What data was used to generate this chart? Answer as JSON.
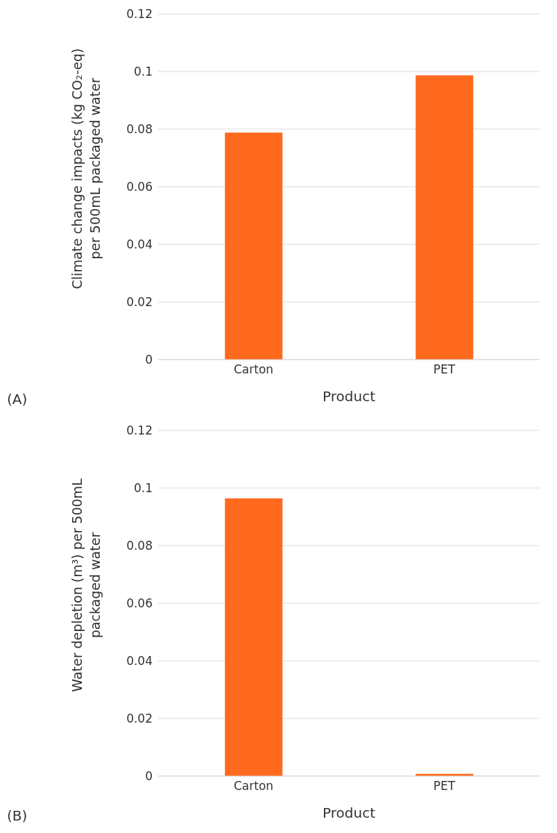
{
  "chart_data": [
    {
      "type": "bar",
      "categories": [
        "Carton",
        "PET"
      ],
      "values": [
        0.0788,
        0.0987
      ],
      "color": "#ff6a1f",
      "ylim": [
        0,
        0.12
      ],
      "yticks": [
        0,
        0.02,
        0.04,
        0.06,
        0.08,
        0.1,
        0.12
      ],
      "grid": "y",
      "xlabel": "Product",
      "ylabel": "Climate change impacts (kg CO₂-eq) per 500mL packaged water",
      "annotations": [
        "(A)"
      ]
    },
    {
      "type": "bar",
      "categories": [
        "Carton",
        "PET"
      ],
      "values": [
        0.0964,
        0.0008
      ],
      "color": "#ff6a1f",
      "ylim": [
        0,
        0.12
      ],
      "yticks": [
        0,
        0.02,
        0.04,
        0.06,
        0.08,
        0.1,
        0.12
      ],
      "grid": "y",
      "xlabel": "Product",
      "ylabel": "Water depletion (m³) per 500mL packaged water",
      "annotations": [
        "(B)"
      ]
    }
  ]
}
